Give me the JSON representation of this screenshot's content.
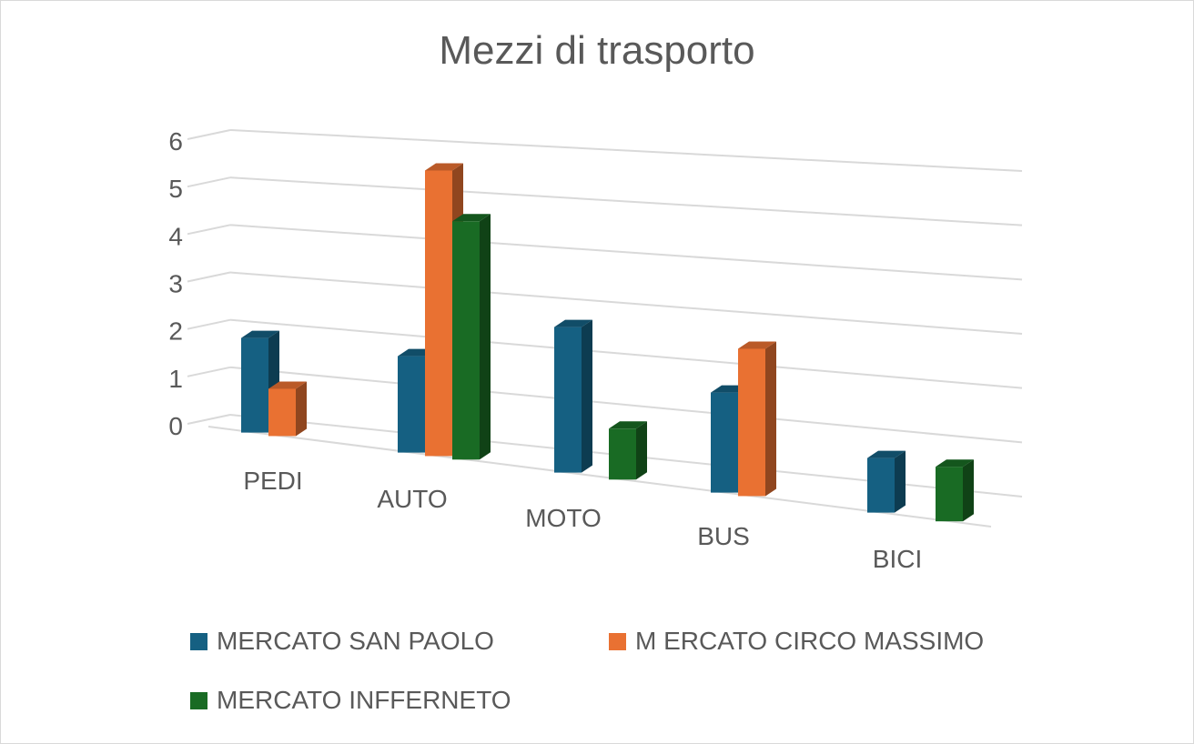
{
  "chart_data": {
    "type": "bar",
    "style": "3d-clustered-column",
    "title": "Mezzi di trasporto",
    "categories": [
      "PEDI",
      "AUTO",
      "MOTO",
      "BUS",
      "BICI"
    ],
    "series": [
      {
        "name": "MERCATO SAN PAOLO",
        "color": "#156082",
        "values": [
          2,
          2,
          3,
          2,
          1
        ]
      },
      {
        "name": "M ERCATO CIRCO MASSIMO",
        "color": "#E97132",
        "values": [
          1,
          6,
          null,
          3,
          null
        ]
      },
      {
        "name": "MERCATO INFFERNETO",
        "color": "#196B24",
        "values": [
          null,
          5,
          1,
          null,
          1
        ]
      }
    ],
    "yticks": [
      0,
      1,
      2,
      3,
      4,
      5,
      6
    ],
    "ylim": [
      0,
      6
    ],
    "grid": true,
    "legend": "bottom"
  }
}
